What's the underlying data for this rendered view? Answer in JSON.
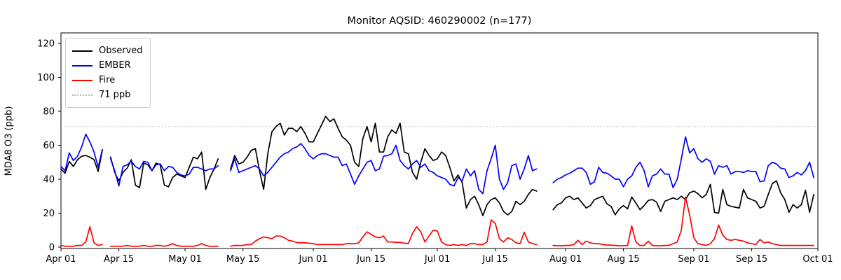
{
  "chart_data": {
    "type": "line",
    "title": "Monitor AQSID: 460290002 (n=177)",
    "ylabel": "MDA8 O3 (ppb)",
    "xlabel": "",
    "grid": false,
    "legend_position": "upper left",
    "n_days": 183,
    "x_start_label": "Apr 01",
    "x_end_label": "Oct 01",
    "x_tick_labels": [
      "Apr 01",
      "Apr 15",
      "May 01",
      "May 15",
      "Jun 01",
      "Jun 15",
      "Jul 01",
      "Jul 15",
      "Aug 01",
      "Aug 15",
      "Sep 01",
      "Sep 15",
      "Oct 01"
    ],
    "x_tick_day_index": [
      1,
      15,
      31,
      45,
      62,
      76,
      92,
      106,
      123,
      137,
      154,
      168,
      184
    ],
    "y_ticks": [
      0,
      20,
      40,
      60,
      80,
      100,
      120
    ],
    "ylim": [
      -1,
      126
    ],
    "threshold": {
      "label": "71 ppb",
      "value": 71,
      "color": "#b8b8b8",
      "style": "dotted"
    },
    "series": [
      {
        "name": "Observed",
        "color": "#000000",
        "values": [
          46,
          43.5,
          50.5,
          47.5,
          51.5,
          53.5,
          54,
          53,
          51.5,
          44.5,
          57,
          null,
          53,
          44,
          39,
          44,
          46.5,
          51.5,
          36.5,
          35,
          49.5,
          48.5,
          45,
          49.5,
          48.5,
          36.5,
          35.5,
          41,
          43,
          42,
          41,
          47,
          53,
          52,
          56,
          34,
          41,
          46,
          52,
          null,
          null,
          46,
          54,
          49,
          50,
          53,
          57,
          58,
          45,
          34,
          55,
          68,
          71,
          73,
          66,
          70,
          70,
          68,
          71,
          67,
          62,
          62,
          67,
          72,
          77,
          74,
          75.5,
          70,
          65,
          63,
          60,
          50,
          47.5,
          64,
          71,
          62,
          73,
          56,
          56,
          65,
          69,
          67,
          73,
          56,
          55,
          44,
          40,
          50,
          58,
          54,
          51,
          52,
          56,
          54,
          47,
          39,
          42.5,
          38,
          23,
          28,
          30,
          25,
          18.5,
          25,
          28,
          29,
          26,
          21,
          19,
          21,
          27,
          25,
          27,
          31,
          34,
          33,
          null,
          null,
          null,
          22,
          25,
          26,
          29,
          30,
          28,
          29,
          26,
          23,
          24.5,
          28,
          29,
          30,
          25.5,
          24,
          19,
          22.5,
          24.5,
          22.5,
          29.5,
          26,
          22,
          24.5,
          27.5,
          28,
          26.5,
          21,
          27,
          28,
          29,
          28,
          30,
          28,
          32,
          33,
          31.5,
          29,
          31,
          37,
          20.5,
          20,
          34,
          25,
          24,
          23.5,
          23,
          34,
          29,
          28,
          27,
          23,
          24,
          31,
          37.5,
          39,
          32,
          28,
          20.5,
          25,
          23,
          25,
          33.5,
          20.5,
          31
        ]
      },
      {
        "name": "EMBER",
        "color": "#0000ff",
        "values": [
          47.5,
          45,
          55.5,
          51,
          53.5,
          59,
          66.5,
          62,
          56,
          47,
          57.5,
          null,
          52,
          45,
          36,
          47.5,
          48.5,
          50.5,
          47.5,
          46,
          50.5,
          50,
          45,
          48.5,
          49,
          45,
          47.5,
          47,
          44,
          42.5,
          42,
          43,
          47,
          47,
          46,
          45,
          46,
          46,
          48,
          null,
          null,
          45,
          52,
          44,
          45,
          46,
          47,
          48,
          46,
          42,
          44,
          47,
          50,
          53,
          55,
          56,
          58,
          59,
          61,
          58,
          54,
          52,
          54,
          55,
          55,
          54,
          53,
          53,
          48,
          49,
          43,
          37,
          42,
          46,
          50,
          51,
          45,
          46,
          53.5,
          54,
          55,
          60,
          51,
          48,
          46,
          49,
          51,
          47,
          49,
          45,
          44,
          42,
          41,
          40,
          37,
          36,
          41,
          39,
          46,
          42,
          45,
          34,
          31.5,
          45,
          52,
          60,
          40,
          34,
          38,
          48,
          49,
          40,
          46,
          54,
          45,
          46,
          null,
          null,
          null,
          38,
          40,
          41,
          42.5,
          43.5,
          45,
          46.5,
          46.5,
          44,
          37,
          38.5,
          47,
          44,
          43.5,
          42,
          40,
          40,
          35.5,
          40,
          42,
          47,
          50,
          45,
          35.5,
          42,
          43,
          46,
          43,
          43,
          35,
          40,
          52,
          65,
          55.5,
          58,
          52,
          50,
          52,
          50.5,
          43,
          48,
          47,
          48,
          43,
          44.5,
          44.5,
          44,
          45,
          44.5,
          44.5,
          38.5,
          39,
          48,
          50,
          49,
          46.5,
          46,
          41,
          42,
          44,
          42.5,
          45,
          50,
          41
        ]
      },
      {
        "name": "Fire",
        "color": "#ff0000",
        "values": [
          1,
          0.5,
          0.5,
          0.5,
          1,
          1,
          3,
          12,
          2.5,
          1,
          1.5,
          null,
          0.5,
          0.5,
          0.5,
          0.5,
          1,
          0.5,
          0.5,
          0.5,
          1,
          0.5,
          0.5,
          1,
          1,
          0.5,
          1,
          2,
          1,
          0.5,
          0.5,
          0.5,
          0.5,
          1,
          2,
          1,
          0.5,
          0.5,
          0.5,
          null,
          null,
          0.5,
          1,
          1,
          1,
          1.5,
          1.5,
          3.5,
          5,
          6,
          5.5,
          5,
          6.5,
          6.5,
          5.5,
          4,
          3.5,
          2.7,
          2.5,
          2.5,
          2.3,
          2,
          1.5,
          1.5,
          1.5,
          1.5,
          1.5,
          1.5,
          1.5,
          2,
          2,
          2,
          2.5,
          6,
          9,
          7.5,
          6,
          5.5,
          6.5,
          3,
          3,
          2.8,
          2.8,
          2.3,
          2,
          8,
          12,
          9,
          3,
          6.5,
          10,
          9.5,
          3,
          1.5,
          1,
          1.5,
          1,
          1.5,
          1,
          2,
          2,
          1.5,
          1.5,
          3,
          16,
          14,
          5,
          3,
          5.5,
          4.5,
          2.5,
          2,
          8.8,
          3,
          2,
          1.5,
          null,
          null,
          null,
          1,
          0.8,
          0.8,
          1,
          1,
          1.5,
          4,
          1.5,
          3.5,
          2.5,
          2,
          2,
          1.5,
          1.2,
          1.2,
          1,
          0.8,
          0.8,
          1,
          12.5,
          3,
          1,
          1,
          3.5,
          1,
          0.8,
          0.8,
          1,
          1,
          2,
          3,
          10,
          29.5,
          19,
          5.5,
          2,
          1.5,
          1,
          2,
          5,
          13,
          7,
          4.5,
          4,
          4.5,
          4,
          3.5,
          2.5,
          2,
          1.5,
          4.5,
          2.5,
          3,
          2,
          1.5,
          1,
          1,
          1,
          1,
          1,
          1,
          1,
          1,
          1
        ]
      }
    ]
  }
}
